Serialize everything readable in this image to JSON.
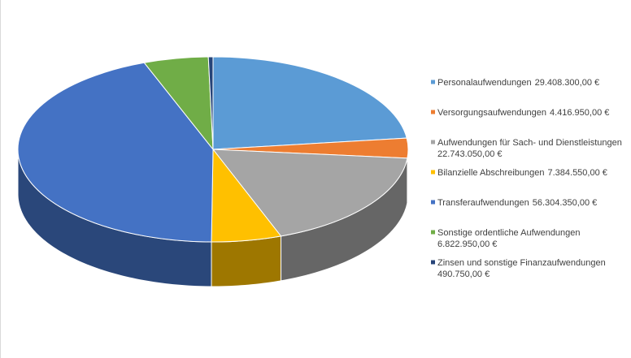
{
  "chart_data": {
    "type": "pie3d",
    "categories": [
      "Personalaufwendungen",
      "Versorgungsaufwendungen",
      "Aufwendungen für Sach- und Dienstleistungen",
      "Bilanzielle Abschreibungen",
      "Transferaufwendungen",
      "Sonstige ordentliche Aufwendungen",
      "Zinsen und sonstige Finanzaufwendungen"
    ],
    "values": [
      29408300,
      4416950,
      22743050,
      7384550,
      56304350,
      6822950,
      490750
    ],
    "value_labels": [
      "29.408.300,00 €",
      "4.416.950,00 €",
      "22.743.050,00 €",
      "7.384.550,00 €",
      "56.304.350,00 €",
      "6.822.950,00 €",
      "490.750,00 €"
    ],
    "colors": [
      "#5b9bd5",
      "#ed7d31",
      "#a5a5a5",
      "#ffc000",
      "#4472c4",
      "#70ad47",
      "#264478"
    ],
    "legend": "right"
  }
}
